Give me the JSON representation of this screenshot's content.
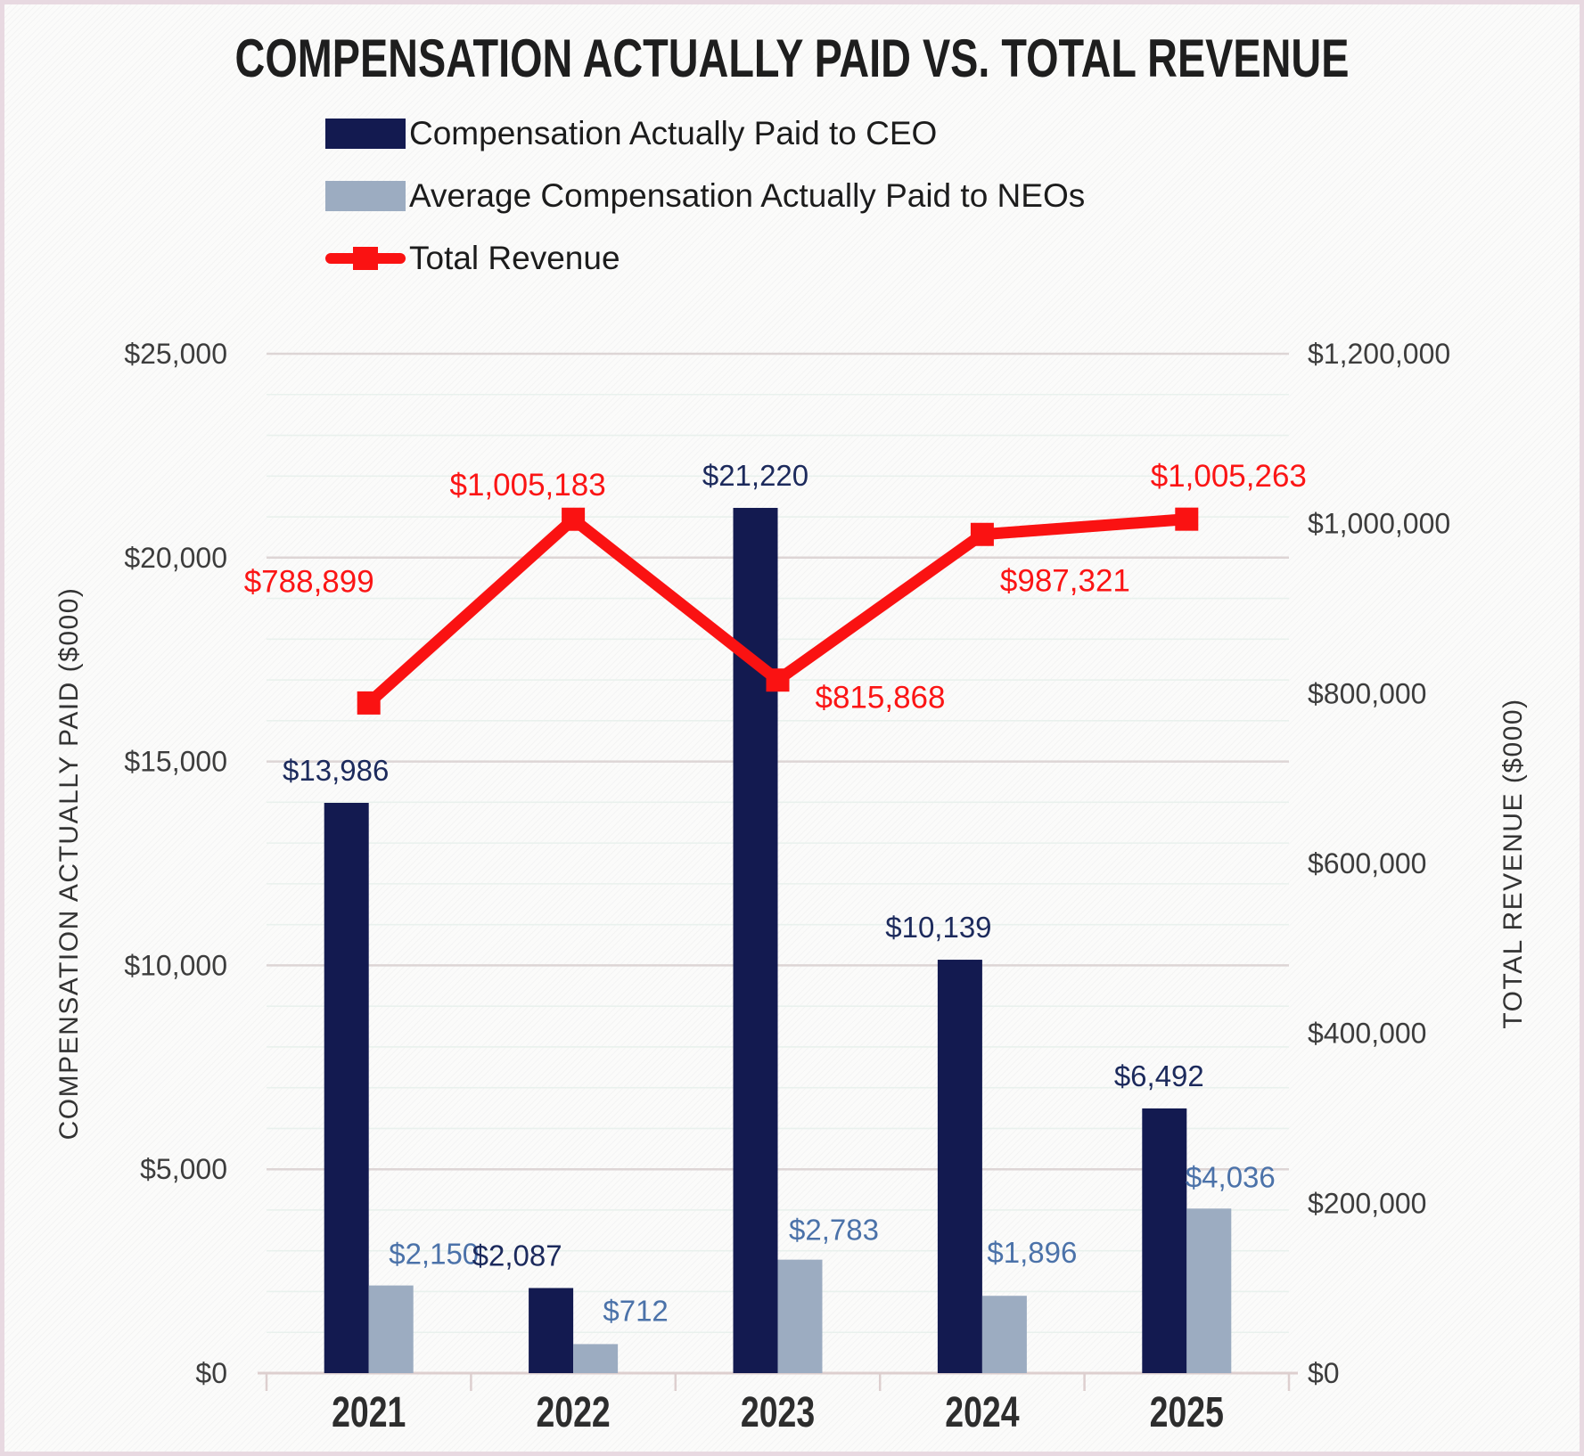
{
  "title": "COMPENSATION ACTUALLY PAID VS. TOTAL REVENUE",
  "legend": {
    "items": [
      {
        "label": "Compensation Actually Paid to CEO",
        "color": "#131a50",
        "type": "bar"
      },
      {
        "label": "Average Compensation Actually Paid to NEOs",
        "color": "#9cacc1",
        "type": "bar"
      },
      {
        "label": "Total Revenue",
        "color": "#fa1212",
        "type": "line"
      }
    ]
  },
  "chart_data": {
    "type": "bar",
    "subtype": "combo-clustered-bar-with-line",
    "title": "COMPENSATION ACTUALLY PAID VS. TOTAL REVENUE",
    "categories": [
      "2021",
      "2022",
      "2023",
      "2024",
      "2025"
    ],
    "series": [
      {
        "name": "Compensation Actually Paid to CEO",
        "type": "bar",
        "axis": "left",
        "color": "#131a50",
        "values": [
          13986,
          2087,
          21220,
          10139,
          6492
        ],
        "data_labels": [
          "$13,986",
          "$2,087",
          "$21,220",
          "$10,139",
          "$6,492"
        ],
        "label_color": "#1c2a5c"
      },
      {
        "name": "Average Compensation Actually Paid to NEOs",
        "type": "bar",
        "axis": "left",
        "color": "#9cacc1",
        "values": [
          2150,
          712,
          2783,
          1896,
          4036
        ],
        "data_labels": [
          "$2,150",
          "$712",
          "$2,783",
          "$1,896",
          "$4,036"
        ],
        "label_color": "#4b72a9"
      },
      {
        "name": "Total Revenue",
        "type": "line",
        "axis": "right",
        "color": "#fa1212",
        "values": [
          788899,
          1005183,
          815868,
          987321,
          1005263
        ],
        "data_labels": [
          "$788,899",
          "$1,005,183",
          "$815,868",
          "$987,321",
          "$1,005,263"
        ],
        "label_color": "#fb1515"
      }
    ],
    "axes": {
      "left": {
        "title": "COMPENSATION ACTUALLY PAID ($000)",
        "min": 0,
        "max": 25000,
        "tick_step": 5000,
        "tick_labels": [
          "$0",
          "$5,000",
          "$10,000",
          "$15,000",
          "$20,000",
          "$25,000"
        ]
      },
      "right": {
        "title": "TOTAL REVENUE ($000)",
        "min": 0,
        "max": 1200000,
        "tick_step": 200000,
        "tick_labels": [
          "$0",
          "$200,000",
          "$400,000",
          "$600,000",
          "$800,000",
          "$1,000,000",
          "$1,200,000"
        ]
      }
    },
    "grid": {
      "on": true,
      "minor_step_left_axis": 1000,
      "major_step_left_axis": 5000
    },
    "legend_position": "top-left",
    "label_offsets": {
      "ceo_dx": [
        -12,
        -38,
        0,
        -24,
        -6
      ],
      "ceo_dy": [
        -25,
        -25,
        -25,
        -25,
        -25
      ],
      "neo_dx": [
        48,
        45,
        38,
        31,
        24
      ],
      "neo_dy": [
        -24,
        -26,
        -22,
        -37,
        -24
      ],
      "line_dx": [
        -67,
        -51,
        115,
        93,
        47
      ],
      "line_dy": [
        -136,
        -38,
        20,
        52,
        -48
      ]
    },
    "style": {
      "tick_text_color": "#3d3d3d",
      "year_text_color": "#2d2d2d",
      "axis_title_color": "#333333",
      "grid_minor_color": "#e9f1ed",
      "grid_major_color": "#ddd5d5",
      "baseline_color": "#ddcfcf"
    }
  }
}
